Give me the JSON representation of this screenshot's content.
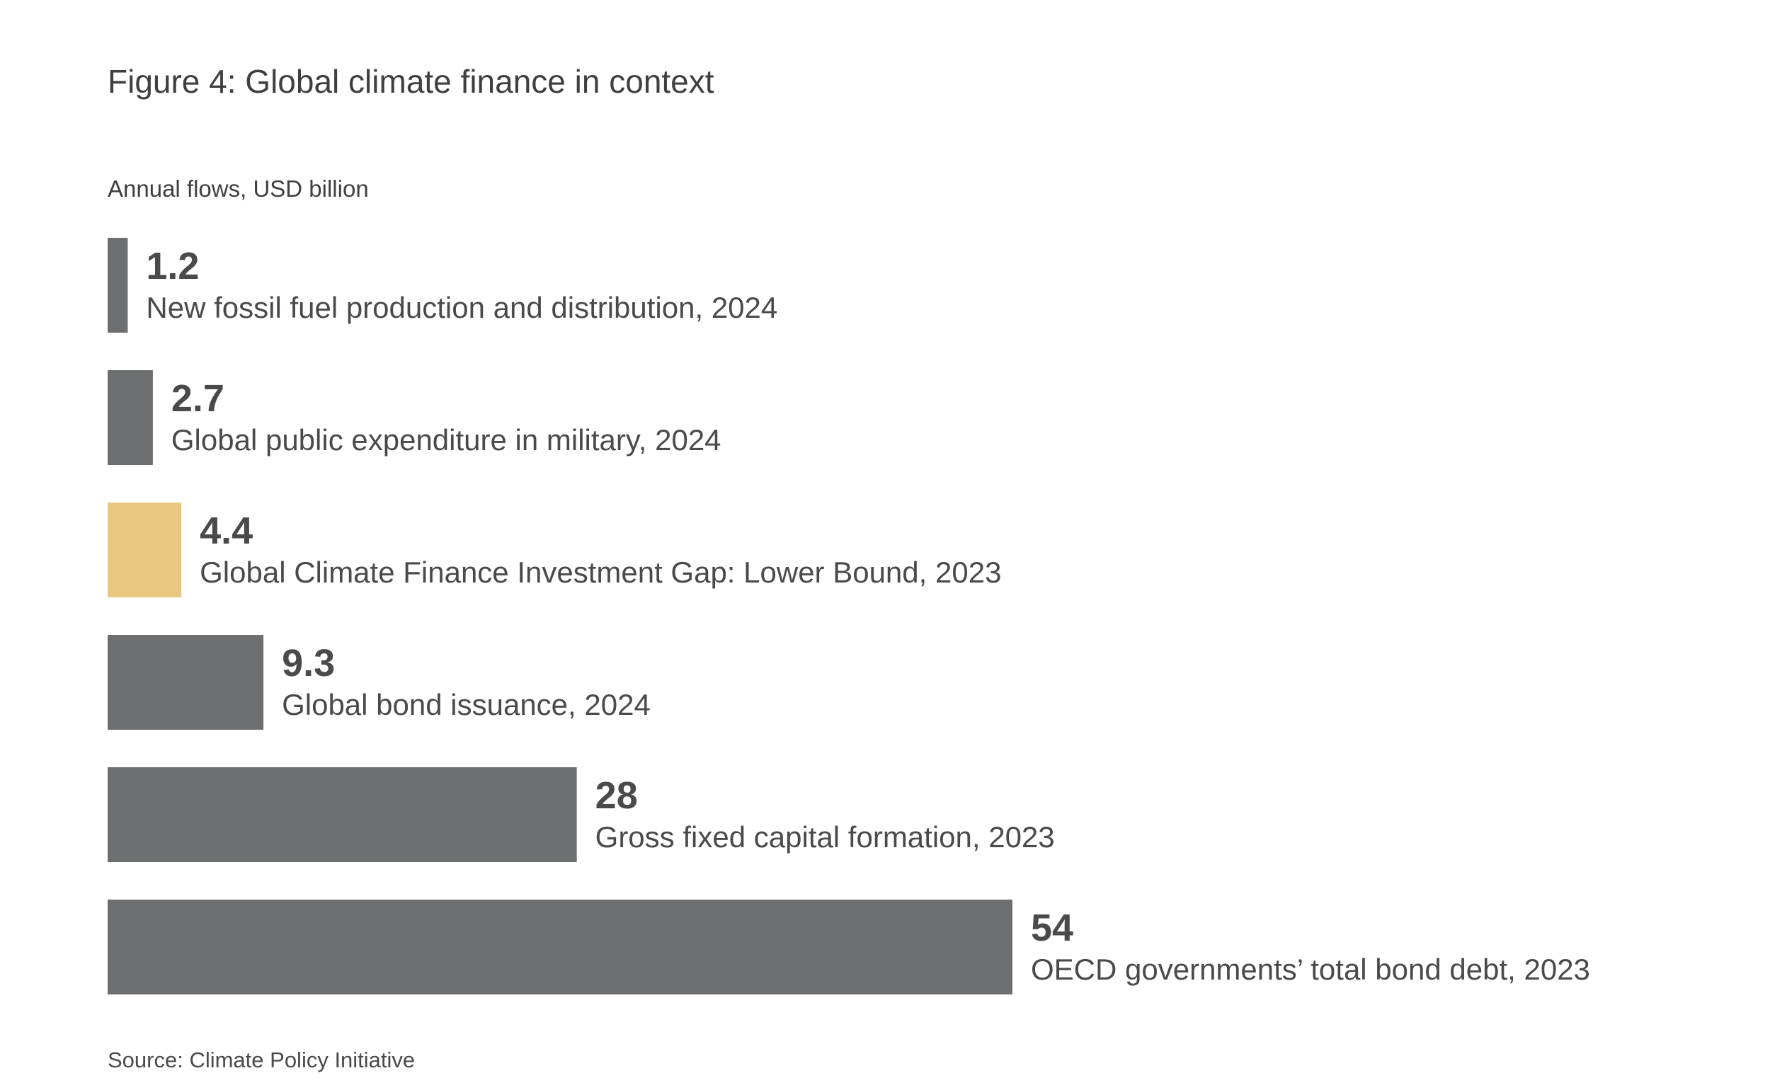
{
  "title": "Figure 4: Global climate finance in context",
  "subtitle": "Annual flows, USD billion",
  "source": "Source: Climate Policy Initiative",
  "colors": {
    "bar_default": "#6d6e70",
    "bar_highlight": "#e8c780",
    "text": "#4a4a4a"
  },
  "chart_data": {
    "type": "bar",
    "orientation": "horizontal",
    "unit": "USD billion",
    "categories": [
      "New fossil fuel production and distribution, 2024",
      "Global public expenditure in military, 2024",
      "Global Climate Finance Investment Gap: Lower Bound, 2023",
      "Global bond issuance, 2024",
      "Gross fixed capital formation, 2023",
      "OECD governments’ total bond debt, 2023"
    ],
    "values": [
      1.2,
      2.7,
      4.4,
      9.3,
      28,
      54
    ],
    "value_labels": [
      "1.2",
      "2.7",
      "4.4",
      "9.3",
      "28",
      "54"
    ],
    "highlight_index": 2,
    "xlim": [
      0,
      54
    ],
    "grid": false,
    "legend": "none"
  }
}
